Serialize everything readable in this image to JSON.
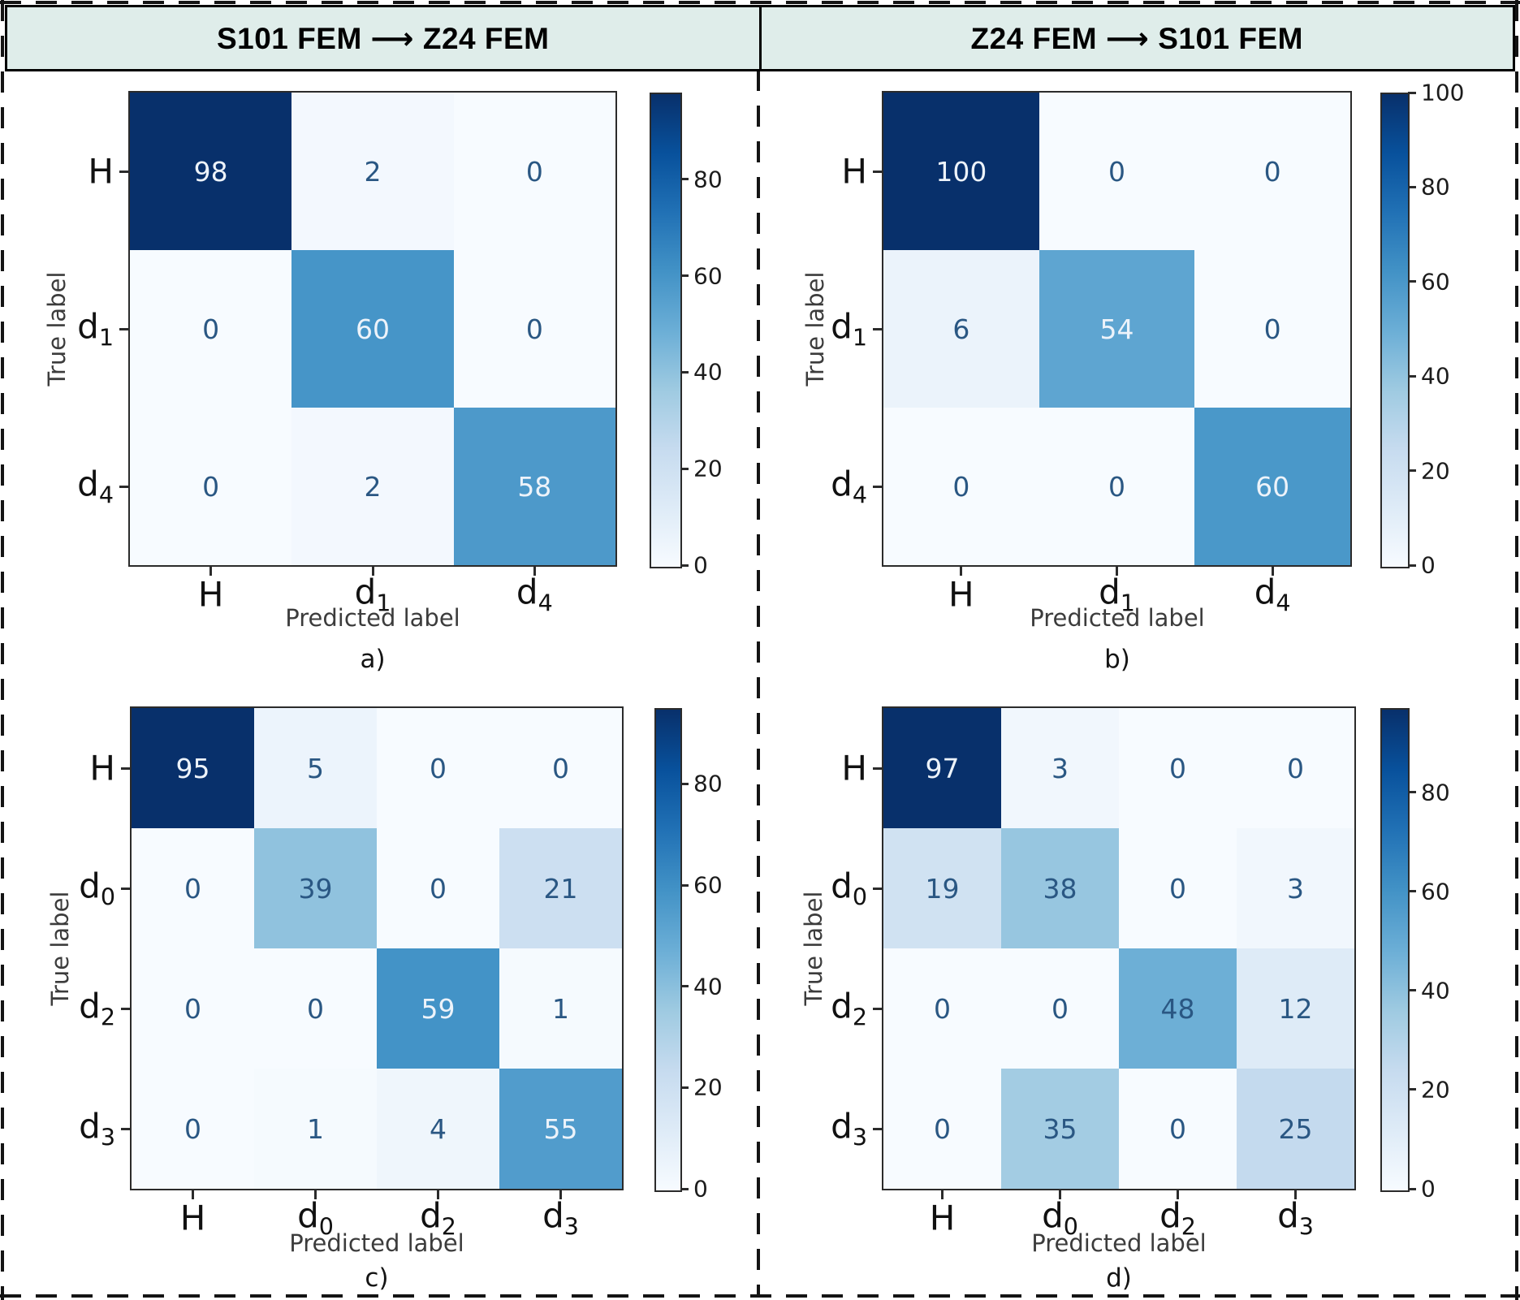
{
  "figure": {
    "headers": [
      {
        "label": "S101 FEM ⟶ Z24 FEM"
      },
      {
        "label": "Z24 FEM ⟶ S101 FEM"
      }
    ],
    "colors": {
      "header_bg": "#dfedea",
      "frame": "#000000",
      "axis": "#2b2b2b",
      "colormap_stops": [
        "#f7fbff",
        "#deebf7",
        "#c6dbef",
        "#9ecae1",
        "#6baed6",
        "#4292c6",
        "#2171b5",
        "#08519c",
        "#08306b"
      ],
      "text_on_dark": "#edf3fa",
      "text_on_light": "#2a5783"
    }
  },
  "chart_data": [
    {
      "type": "heatmap",
      "panel_label": "a)",
      "column_header": "S101 FEM ⟶ Z24 FEM",
      "xlabel": "Predicted label",
      "ylabel": "True label",
      "x_categories": [
        "H",
        "d_1",
        "d_4"
      ],
      "y_categories": [
        "H",
        "d_1",
        "d_4"
      ],
      "values": [
        [
          98,
          2,
          0
        ],
        [
          0,
          60,
          0
        ],
        [
          0,
          2,
          58
        ]
      ],
      "vmin": 0,
      "vmax": 98,
      "colorbar_ticks": [
        80,
        60,
        40,
        20,
        0
      ],
      "legend_position": "right",
      "grid": false
    },
    {
      "type": "heatmap",
      "panel_label": "b)",
      "column_header": "Z24 FEM ⟶ S101 FEM",
      "xlabel": "Predicted label",
      "ylabel": "True label",
      "x_categories": [
        "H",
        "d_1",
        "d_4"
      ],
      "y_categories": [
        "H",
        "d_1",
        "d_4"
      ],
      "values": [
        [
          100,
          0,
          0
        ],
        [
          6,
          54,
          0
        ],
        [
          0,
          0,
          60
        ]
      ],
      "vmin": 0,
      "vmax": 100,
      "colorbar_ticks": [
        100,
        80,
        60,
        40,
        20,
        0
      ],
      "legend_position": "right",
      "grid": false
    },
    {
      "type": "heatmap",
      "panel_label": "c)",
      "column_header": "S101 FEM ⟶ Z24 FEM",
      "xlabel": "Predicted label",
      "ylabel": "True label",
      "x_categories": [
        "H",
        "d_0",
        "d_2",
        "d_3"
      ],
      "y_categories": [
        "H",
        "d_0",
        "d_2",
        "d_3"
      ],
      "values": [
        [
          95,
          5,
          0,
          0
        ],
        [
          0,
          39,
          0,
          21
        ],
        [
          0,
          0,
          59,
          1
        ],
        [
          0,
          1,
          4,
          55
        ]
      ],
      "vmin": 0,
      "vmax": 95,
      "colorbar_ticks": [
        80,
        60,
        40,
        20,
        0
      ],
      "legend_position": "right",
      "grid": false
    },
    {
      "type": "heatmap",
      "panel_label": "d)",
      "column_header": "Z24 FEM ⟶ S101 FEM",
      "xlabel": "Predicted label",
      "ylabel": "True label",
      "x_categories": [
        "H",
        "d_0",
        "d_2",
        "d_3"
      ],
      "y_categories": [
        "H",
        "d_0",
        "d_2",
        "d_3"
      ],
      "values": [
        [
          97,
          3,
          0,
          0
        ],
        [
          19,
          38,
          0,
          3
        ],
        [
          0,
          0,
          48,
          12
        ],
        [
          0,
          35,
          0,
          25
        ]
      ],
      "vmin": 0,
      "vmax": 97,
      "colorbar_ticks": [
        80,
        60,
        40,
        20,
        0
      ],
      "legend_position": "right",
      "grid": false
    }
  ]
}
